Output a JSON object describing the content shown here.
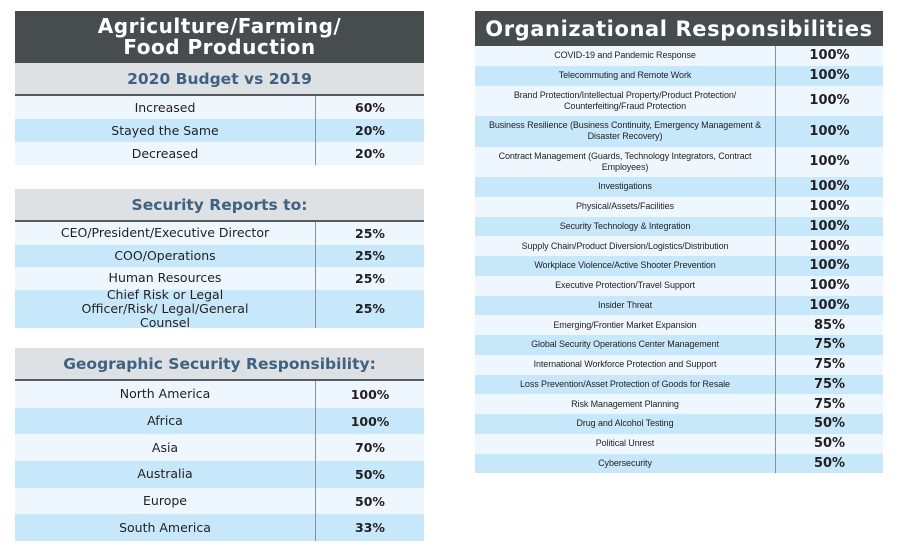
{
  "colors": {
    "header_bg": "#474c4f",
    "subheader_bg": "#dde1e3",
    "subheader_text": "#3f6282",
    "row_light": "#eef7fe",
    "row_blue": "#c6e8fa"
  },
  "budget_table": {
    "title": "Agriculture/Farming/ Food Production",
    "title_line1": "Agriculture/Farming/",
    "title_line2": "Food Production",
    "subtitle": "2020 Budget vs 2019",
    "rows": [
      {
        "label": "Increased",
        "value": "60%"
      },
      {
        "label": "Stayed the Same",
        "value": "20%"
      },
      {
        "label": "Decreased",
        "value": "20%"
      }
    ]
  },
  "reports_table": {
    "subtitle": "Security Reports to:",
    "rows": [
      {
        "label": "CEO/President/Executive Director",
        "value": "25%"
      },
      {
        "label": "COO/Operations",
        "value": "25%"
      },
      {
        "label": "Human Resources",
        "value": "25%"
      },
      {
        "label": "Chief Risk or Legal Officer/Risk/ Legal/General Counsel",
        "value": "25%"
      }
    ]
  },
  "geo_table": {
    "subtitle": "Geographic Security Responsibility:",
    "rows": [
      {
        "label": "North America",
        "value": "100%"
      },
      {
        "label": "Africa",
        "value": "100%"
      },
      {
        "label": "Asia",
        "value": "70%"
      },
      {
        "label": "Australia",
        "value": "50%"
      },
      {
        "label": "Europe",
        "value": "50%"
      },
      {
        "label": "South America",
        "value": "33%"
      }
    ]
  },
  "org_table": {
    "title": "Organizational Responsibilities",
    "rows": [
      {
        "label": "COVID-19 and Pandemic Response",
        "value": "100%"
      },
      {
        "label": "Telecommuting and Remote Work",
        "value": "100%"
      },
      {
        "label": "Brand Protection/Intellectual Property/Product Protection/ Counterfeiting/Fraud Protection",
        "value": "100%"
      },
      {
        "label": "Business Resilience (Business Continuity, Emergency Management & Disaster Recovery)",
        "value": "100%"
      },
      {
        "label": "Contract Management (Guards, Technology Integrators, Contract Employees)",
        "value": "100%"
      },
      {
        "label": "Investigations",
        "value": "100%"
      },
      {
        "label": "Physical/Assets/Facilities",
        "value": "100%"
      },
      {
        "label": "Security Technology & Integration",
        "value": "100%"
      },
      {
        "label": "Supply Chain/Product Diversion/Logistics/Distribution",
        "value": "100%"
      },
      {
        "label": "Workplace Violence/Active Shooter Prevention",
        "value": "100%"
      },
      {
        "label": "Executive Protection/Travel Support",
        "value": "100%"
      },
      {
        "label": "Insider Threat",
        "value": "100%"
      },
      {
        "label": "Emerging/Frontier Market Expansion",
        "value": "85%"
      },
      {
        "label": "Global Security Operations Center Management",
        "value": "75%"
      },
      {
        "label": "International Workforce Protection and Support",
        "value": "75%"
      },
      {
        "label": "Loss Prevention/Asset Protection of Goods for Resale",
        "value": "75%"
      },
      {
        "label": "Risk Management Planning",
        "value": "75%"
      },
      {
        "label": "Drug and Alcohol Testing",
        "value": "50%"
      },
      {
        "label": "Political Unrest",
        "value": "50%"
      },
      {
        "label": "Cybersecurity",
        "value": "50%"
      }
    ]
  }
}
